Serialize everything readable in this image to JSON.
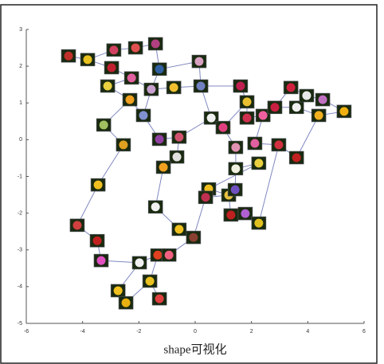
{
  "chart_data": {
    "type": "scatter",
    "x_label": "shape可视化",
    "xlim": [
      -6,
      6
    ],
    "xticks": [
      -6,
      -4,
      -2,
      0,
      2,
      4,
      6
    ],
    "ylim": [
      -5,
      3
    ],
    "yticks": [
      -5,
      -4,
      -3,
      -2,
      -1,
      0,
      1,
      2,
      3
    ],
    "edge_color": "#8088c0",
    "series": [
      {
        "x": [
          -4.5,
          -3.82,
          -2.89,
          -2.12,
          -1.41,
          0.14,
          -1.27,
          -2.97,
          -2.26,
          -3.11,
          -1.56,
          -0.76,
          0.2,
          -2.32,
          -1.84,
          -3.25,
          -2.55,
          -1.27,
          -0.57,
          -0.65,
          -1.13,
          0.57,
          0.99,
          1.61,
          1.84,
          1.84,
          2.41,
          2.83,
          3.4,
          3.6,
          3.96,
          4.53,
          4.39,
          5.29,
          2.12,
          2.97,
          3.6,
          1.44,
          1.44,
          2.26,
          0.48,
          0.37,
          1.19,
          1.42,
          1.27,
          1.78,
          2.26,
          -1.41,
          -0.57,
          -0.06,
          -3.45,
          -4.19,
          -3.48,
          -3.34,
          -1.98,
          -1.33,
          -0.93,
          -1.61,
          -2.74,
          -2.46,
          -1.27
        ],
        "values": [
          2.28,
          2.18,
          2.44,
          2.5,
          2.61,
          2.13,
          1.92,
          1.96,
          1.68,
          1.46,
          1.37,
          1.42,
          1.46,
          1.09,
          0.66,
          0.4,
          -0.14,
          0.01,
          0.07,
          -0.47,
          -0.75,
          0.59,
          0.33,
          1.46,
          1.03,
          0.59,
          0.66,
          0.88,
          1.42,
          0.88,
          1.2,
          1.09,
          0.66,
          0.77,
          -0.1,
          -0.14,
          -0.49,
          -0.21,
          -0.79,
          -0.64,
          -1.34,
          -1.57,
          -1.51,
          -1.36,
          -2.05,
          -2.01,
          -2.27,
          -1.83,
          -2.44,
          -2.66,
          -1.23,
          -2.33,
          -2.75,
          -3.29,
          -3.35,
          -3.14,
          -3.14,
          -3.85,
          -4.11,
          -4.44,
          -4.33
        ],
        "colors": [
          "#c0302a",
          "#e8c020",
          "#d04060",
          "#e05050",
          "#b04080",
          "#d8a0c0",
          "#3060a0",
          "#c02030",
          "#e060a0",
          "#e8d040",
          "#c8a0d0",
          "#f0c030",
          "#7080c0",
          "#f0a020",
          "#8090d0",
          "#a0c060",
          "#e0a020",
          "#9040a0",
          "#d05070",
          "#e0e0e0",
          "#f0a020",
          "#f0f0f0",
          "#e04080",
          "#c02050",
          "#e8c030",
          "#d03050",
          "#f060a0",
          "#c82040",
          "#d02040",
          "#f0f0f0",
          "#e8e8e8",
          "#c070c0",
          "#f0b020",
          "#f0b010",
          "#e060a0",
          "#d03040",
          "#c02020",
          "#e090b0",
          "#f0f0e0",
          "#e8d040",
          "#f0c020",
          "#c03050",
          "#e8c040",
          "#7050c0",
          "#c02020",
          "#b060d0",
          "#e0c020",
          "#f0f0f0",
          "#f0c020",
          "#8a4030",
          "#f0c020",
          "#d04040",
          "#c02020",
          "#e050c0",
          "#f0f0f0",
          "#e04020",
          "#f06080",
          "#e8c020",
          "#f0c020",
          "#e8b010",
          "#e04040"
        ]
      }
    ],
    "edges": [
      [
        0,
        1
      ],
      [
        1,
        2
      ],
      [
        2,
        3
      ],
      [
        3,
        4
      ],
      [
        4,
        6
      ],
      [
        6,
        5
      ],
      [
        5,
        12
      ],
      [
        1,
        7
      ],
      [
        7,
        8
      ],
      [
        8,
        9
      ],
      [
        9,
        13
      ],
      [
        13,
        14
      ],
      [
        14,
        10
      ],
      [
        10,
        11
      ],
      [
        11,
        12
      ],
      [
        12,
        21
      ],
      [
        13,
        15
      ],
      [
        15,
        16
      ],
      [
        16,
        50
      ],
      [
        14,
        17
      ],
      [
        17,
        18
      ],
      [
        18,
        19
      ],
      [
        19,
        20
      ],
      [
        20,
        47
      ],
      [
        21,
        22
      ],
      [
        22,
        37
      ],
      [
        12,
        23
      ],
      [
        23,
        24
      ],
      [
        24,
        25
      ],
      [
        25,
        26
      ],
      [
        26,
        27
      ],
      [
        27,
        28
      ],
      [
        28,
        30
      ],
      [
        30,
        31
      ],
      [
        31,
        33
      ],
      [
        33,
        32
      ],
      [
        32,
        29
      ],
      [
        29,
        27
      ],
      [
        26,
        34
      ],
      [
        34,
        35
      ],
      [
        35,
        36
      ],
      [
        36,
        32
      ],
      [
        37,
        38
      ],
      [
        38,
        39
      ],
      [
        39,
        40
      ],
      [
        38,
        43
      ],
      [
        40,
        42
      ],
      [
        41,
        42
      ],
      [
        42,
        44
      ],
      [
        44,
        45
      ],
      [
        45,
        46
      ],
      [
        46,
        35
      ],
      [
        41,
        49
      ],
      [
        49,
        48
      ],
      [
        48,
        47
      ],
      [
        50,
        51
      ],
      [
        51,
        52
      ],
      [
        52,
        53
      ],
      [
        53,
        54
      ],
      [
        54,
        55
      ],
      [
        55,
        56
      ],
      [
        56,
        49
      ],
      [
        54,
        58
      ],
      [
        58,
        59
      ],
      [
        59,
        57
      ],
      [
        57,
        60
      ],
      [
        55,
        57
      ],
      [
        22,
        24
      ],
      [
        8,
        10
      ],
      [
        6,
        10
      ],
      [
        18,
        21
      ]
    ]
  }
}
